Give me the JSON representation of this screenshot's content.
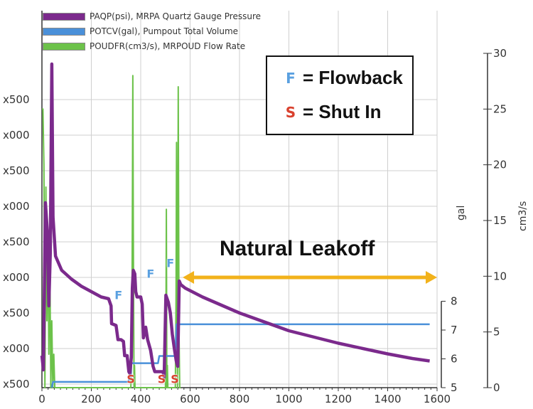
{
  "legend": [
    {
      "label": "PAQP(psi), MRPA Quartz Gauge Pressure",
      "color": "#7b2a8c"
    },
    {
      "label": "POTCV(gal), Pumpout Total Volume",
      "color": "#4a90d9"
    },
    {
      "label": "POUDFR(cm3/s), MRPOUD Flow Rate",
      "color": "#6cc24a"
    }
  ],
  "annotation_box": {
    "flowback_letter": "F",
    "flowback_text": "= Flowback",
    "shutin_letter": "S",
    "shutin_text": "= Shut In",
    "flowback_color": "#5aa0e0",
    "shutin_color": "#d9412e"
  },
  "leakoff_label": "Natural Leakoff",
  "leakoff_arrow_color": "#f2b21b",
  "chart_data": {
    "type": "line",
    "x_ticks": [
      "0",
      "200",
      "400",
      "600",
      "800",
      "1000",
      "1200",
      "1400",
      "1600"
    ],
    "xlim": [
      0,
      1600
    ],
    "left_axis_ticks": [
      "x500",
      "x000",
      "x500",
      "x000",
      "x500",
      "x000",
      "x500",
      "x000",
      "x500"
    ],
    "gal_axis": {
      "label": "gal",
      "ticks": [
        "5",
        "6",
        "7",
        "8"
      ],
      "ylim": [
        5,
        8
      ]
    },
    "flow_axis": {
      "label": "cm3/s",
      "ticks": [
        "0",
        "5",
        "10",
        "15",
        "20",
        "25",
        "30"
      ],
      "ylim": [
        0,
        30
      ]
    },
    "grid": true,
    "series": [
      {
        "name": "PAQP(psi), MRPA Quartz Gauge Pressure",
        "axis": "left",
        "color": "#7b2a8c",
        "points": [
          [
            0,
            0.9
          ],
          [
            6,
            0.5
          ],
          [
            14,
            5.2
          ],
          [
            22,
            4.4
          ],
          [
            28,
            2.3
          ],
          [
            34,
            3.8
          ],
          [
            40,
            9.1
          ],
          [
            45,
            4.8
          ],
          [
            55,
            3.7
          ],
          [
            80,
            3.3
          ],
          [
            120,
            3.05
          ],
          [
            160,
            2.85
          ],
          [
            200,
            2.7
          ],
          [
            240,
            2.55
          ],
          [
            270,
            2.5
          ],
          [
            280,
            2.3
          ],
          [
            282,
            1.8
          ],
          [
            300,
            1.75
          ],
          [
            308,
            1.35
          ],
          [
            320,
            1.35
          ],
          [
            330,
            1.3
          ],
          [
            335,
            0.9
          ],
          [
            345,
            0.9
          ],
          [
            352,
            0.45
          ],
          [
            356,
            0.4
          ],
          [
            362,
            0.85
          ],
          [
            366,
            2.8
          ],
          [
            370,
            3.3
          ],
          [
            376,
            3.2
          ],
          [
            380,
            2.7
          ],
          [
            385,
            2.55
          ],
          [
            400,
            2.55
          ],
          [
            406,
            2.35
          ],
          [
            411,
            1.4
          ],
          [
            420,
            1.7
          ],
          [
            428,
            1.35
          ],
          [
            440,
            1.05
          ],
          [
            450,
            0.6
          ],
          [
            457,
            0.45
          ],
          [
            490,
            0.45
          ],
          [
            495,
            0.3
          ],
          [
            502,
            2.6
          ],
          [
            512,
            2.4
          ],
          [
            520,
            2.1
          ],
          [
            528,
            1.5
          ],
          [
            536,
            1.1
          ],
          [
            544,
            0.75
          ],
          [
            550,
            0.6
          ],
          [
            556,
            3.0
          ],
          [
            562,
            2.9
          ],
          [
            580,
            2.8
          ],
          [
            650,
            2.55
          ],
          [
            800,
            2.1
          ],
          [
            1000,
            1.6
          ],
          [
            1200,
            1.25
          ],
          [
            1400,
            0.95
          ],
          [
            1500,
            0.82
          ],
          [
            1570,
            0.75
          ]
        ]
      },
      {
        "name": "POTCV(gal), Pumpout Total Volume",
        "axis": "gal",
        "color": "#4a90d9",
        "points": [
          [
            40,
            5.0
          ],
          [
            45,
            5.2
          ],
          [
            350,
            5.2
          ],
          [
            355,
            5.35
          ],
          [
            360,
            5.35
          ],
          [
            362,
            5.85
          ],
          [
            470,
            5.85
          ],
          [
            475,
            6.1
          ],
          [
            540,
            6.1
          ],
          [
            545,
            7.2
          ],
          [
            1570,
            7.2
          ]
        ]
      },
      {
        "name": "POUDFR(cm3/s), MRPOUD Flow Rate",
        "axis": "flow",
        "color": "#6cc24a",
        "points": [
          [
            0,
            25
          ],
          [
            4,
            25
          ],
          [
            8,
            20
          ],
          [
            12,
            0
          ],
          [
            16,
            18
          ],
          [
            20,
            6
          ],
          [
            24,
            14
          ],
          [
            28,
            3
          ],
          [
            32,
            12
          ],
          [
            36,
            0
          ],
          [
            40,
            6
          ],
          [
            44,
            0
          ],
          [
            48,
            3
          ],
          [
            52,
            0
          ],
          [
            360,
            0
          ],
          [
            364,
            4
          ],
          [
            366,
            15
          ],
          [
            368,
            28
          ],
          [
            370,
            14
          ],
          [
            373,
            0
          ],
          [
            375,
            2
          ],
          [
            377,
            0
          ],
          [
            500,
            0
          ],
          [
            502,
            4
          ],
          [
            504,
            16
          ],
          [
            506,
            0
          ],
          [
            508,
            2
          ],
          [
            510,
            0
          ],
          [
            540,
            0
          ],
          [
            543,
            8
          ],
          [
            545,
            22
          ],
          [
            547,
            6
          ],
          [
            549,
            0
          ],
          [
            552,
            27
          ],
          [
            555,
            5
          ],
          [
            558,
            0
          ],
          [
            562,
            0
          ]
        ]
      }
    ],
    "events": [
      {
        "type": "F",
        "x": 310,
        "y": 2.6
      },
      {
        "type": "F",
        "x": 440,
        "y": 3.2
      },
      {
        "type": "F",
        "x": 520,
        "y": 3.5
      },
      {
        "type": "S",
        "x": 360,
        "y": 0.25
      },
      {
        "type": "S",
        "x": 485,
        "y": 0.25
      },
      {
        "type": "S",
        "x": 538,
        "y": 0.25
      }
    ],
    "leakoff_range": [
      570,
      1600
    ],
    "leakoff_level": 3.0
  }
}
